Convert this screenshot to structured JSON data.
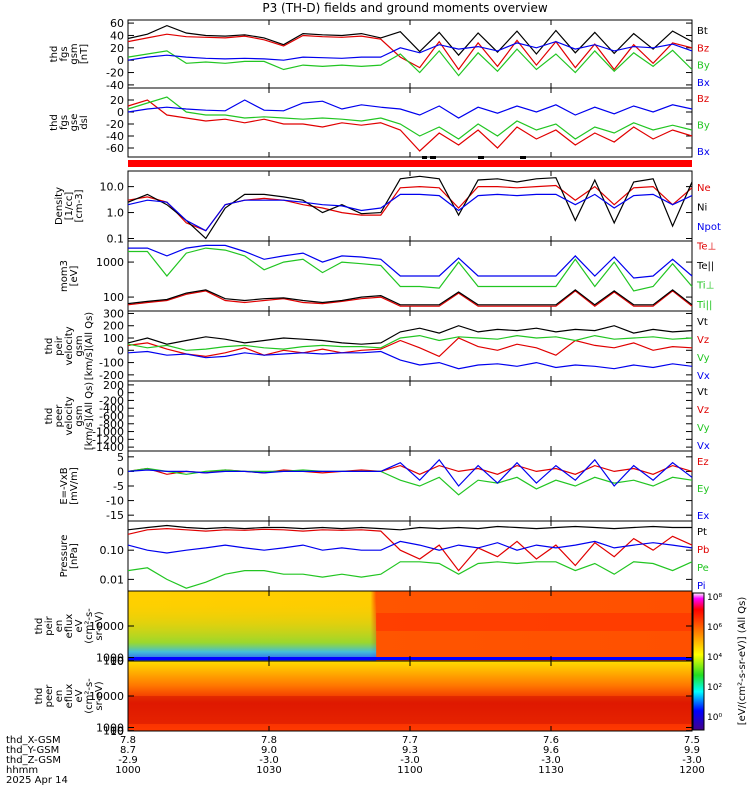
{
  "title": "P3 (TH-D) fields and ground moments overview",
  "colors": {
    "black": "#000000",
    "red": "#e00000",
    "blue": "#0000ee",
    "green": "#22c522",
    "tag_red": "#ff0000"
  },
  "time_axis": {
    "ticks": [
      "1000",
      "1030",
      "1100",
      "1130",
      "1200"
    ],
    "range_hhmm": [
      "1000",
      "1200"
    ]
  },
  "ephemeris": {
    "row_labels": [
      "thd_X-GSM",
      "thd_Y-GSM",
      "thd_Z-GSM",
      "hhmm",
      "2025 Apr 14"
    ],
    "columns": [
      {
        "x": "7.8",
        "y": "8.7",
        "z": "-2.9",
        "t": "1000"
      },
      {
        "x": "7.8",
        "y": "9.0",
        "z": "-3.0",
        "t": "1030"
      },
      {
        "x": "7.7",
        "y": "9.3",
        "z": "-3.0",
        "t": "1100"
      },
      {
        "x": "7.6",
        "y": "9.6",
        "z": "-3.0",
        "t": "1130"
      },
      {
        "x": "7.5",
        "y": "9.9",
        "z": "-3.0",
        "t": "1200"
      }
    ]
  },
  "colorbar": {
    "tick_labels": [
      "10^8",
      "10^6",
      "10^4",
      "10^2",
      "10^0"
    ],
    "label": "[eV/(cm^2-s-sr-eV)] (All Qs)"
  },
  "chart_data": [
    {
      "type": "line",
      "ylabel": [
        "thd",
        "fgs",
        "gsm",
        "[nT]"
      ],
      "ylim": [
        -45,
        65
      ],
      "y_ticks": [
        "60",
        "40",
        "20",
        "0",
        "-20",
        "-40"
      ],
      "legend": [
        "Bt",
        "Bz",
        "By",
        "Bx"
      ],
      "series": [
        {
          "name": "Bt",
          "color": "black",
          "values": [
            35,
            42,
            56,
            44,
            40,
            39,
            41,
            36,
            25,
            43,
            41,
            40,
            43,
            36,
            46,
            14,
            45,
            8,
            44,
            13,
            47,
            10,
            48,
            12,
            45,
            11,
            43,
            18,
            47,
            30
          ]
        },
        {
          "name": "Bz",
          "color": "red",
          "values": [
            30,
            36,
            42,
            38,
            37,
            36,
            39,
            33,
            23,
            40,
            38,
            37,
            39,
            34,
            5,
            -12,
            30,
            -15,
            28,
            -10,
            32,
            -8,
            30,
            -12,
            26,
            -15,
            25,
            -5,
            28,
            20
          ]
        },
        {
          "name": "By",
          "color": "green",
          "values": [
            5,
            10,
            15,
            -5,
            -3,
            -5,
            -2,
            -2,
            -15,
            -8,
            -10,
            -8,
            -10,
            -8,
            10,
            -20,
            15,
            -25,
            12,
            -18,
            18,
            -15,
            10,
            -20,
            15,
            -18,
            12,
            -10,
            16,
            -15
          ]
        },
        {
          "name": "Bx",
          "color": "blue",
          "values": [
            0,
            5,
            8,
            5,
            3,
            2,
            3,
            2,
            0,
            5,
            4,
            3,
            5,
            5,
            20,
            12,
            25,
            18,
            22,
            15,
            28,
            20,
            30,
            18,
            25,
            15,
            22,
            20,
            26,
            15
          ]
        }
      ]
    },
    {
      "type": "line",
      "ylabel": [
        "thd",
        "fgs",
        "gse",
        "dsl"
      ],
      "ylim": [
        -75,
        40
      ],
      "y_ticks": [
        "20",
        "0",
        "-20",
        "-40",
        "-60"
      ],
      "legend": [
        "Bz",
        "By",
        "Bx"
      ],
      "series": [
        {
          "name": "Bz",
          "color": "red",
          "values": [
            10,
            20,
            -5,
            -10,
            -15,
            -12,
            -18,
            -12,
            -20,
            -20,
            -25,
            -18,
            -22,
            -18,
            -30,
            -65,
            -35,
            -55,
            -30,
            -60,
            -25,
            -45,
            -30,
            -55,
            -35,
            -50,
            -25,
            -45,
            -30,
            -40
          ]
        },
        {
          "name": "By",
          "color": "green",
          "values": [
            5,
            15,
            25,
            0,
            -5,
            -5,
            -10,
            -8,
            -10,
            -12,
            -10,
            -12,
            -15,
            -10,
            -20,
            -40,
            -25,
            -45,
            -20,
            -40,
            -15,
            -30,
            -20,
            -45,
            -25,
            -35,
            -18,
            -30,
            -22,
            -30
          ]
        },
        {
          "name": "Bx",
          "color": "blue",
          "values": [
            0,
            5,
            8,
            5,
            3,
            2,
            20,
            3,
            2,
            15,
            18,
            5,
            12,
            8,
            5,
            -5,
            10,
            -10,
            8,
            -2,
            10,
            0,
            12,
            -5,
            8,
            -3,
            10,
            0,
            12,
            5
          ]
        }
      ]
    },
    {
      "type": "line",
      "log": true,
      "ylabel": [
        "Density",
        "[1/cc]",
        "[cm-3]"
      ],
      "ylim": [
        0.08,
        40
      ],
      "y_ticks": [
        "10.0",
        "1.0",
        "0.1"
      ],
      "legend": [
        "Ne",
        "Ni",
        "Npot",
        "Te⊥",
        "Te||",
        "Ti⊥",
        "Ti||"
      ],
      "series": [
        {
          "name": "Ne",
          "color": "red",
          "values": [
            3,
            4,
            2.5,
            0.4,
            0.2,
            2,
            3,
            3.5,
            3,
            2,
            1.5,
            1,
            0.8,
            0.8,
            9,
            10,
            9,
            1.5,
            10,
            10,
            9,
            10,
            11,
            3,
            10,
            2,
            9,
            10,
            2,
            9
          ]
        },
        {
          "name": "Ni",
          "color": "black",
          "values": [
            2.5,
            5,
            2,
            0.5,
            0.1,
            1.5,
            5,
            5,
            4,
            3,
            1,
            2,
            0.9,
            1,
            20,
            25,
            20,
            0.8,
            18,
            20,
            15,
            20,
            22,
            0.5,
            18,
            0.4,
            15,
            20,
            0.3,
            15
          ]
        },
        {
          "name": "Npot",
          "color": "blue",
          "values": [
            2,
            3,
            2.5,
            0.5,
            0.2,
            2,
            3,
            3,
            3,
            2.5,
            2,
            1.8,
            1.2,
            1.5,
            5,
            5,
            4.5,
            1.2,
            4.5,
            5,
            4.5,
            5,
            5,
            2,
            5,
            1.5,
            4.5,
            5,
            2,
            4.5
          ]
        }
      ]
    },
    {
      "type": "line",
      "log": true,
      "ylabel": [
        "mom3",
        "[eV]"
      ],
      "ylim": [
        40,
        4000
      ],
      "y_ticks": [
        "1000",
        "100"
      ],
      "legend": [],
      "series": [
        {
          "name": "Te⊥",
          "color": "red",
          "values": [
            60,
            70,
            80,
            120,
            150,
            80,
            70,
            80,
            90,
            70,
            65,
            75,
            90,
            100,
            55,
            55,
            55,
            130,
            55,
            55,
            55,
            55,
            55,
            150,
            55,
            140,
            55,
            55,
            150,
            55
          ]
        },
        {
          "name": "Te||",
          "color": "black",
          "values": [
            65,
            75,
            85,
            130,
            160,
            90,
            80,
            90,
            95,
            80,
            70,
            80,
            100,
            110,
            60,
            60,
            60,
            140,
            60,
            60,
            60,
            60,
            60,
            160,
            60,
            150,
            60,
            60,
            160,
            60
          ]
        },
        {
          "name": "Ti⊥",
          "color": "blue",
          "values": [
            2500,
            2500,
            1500,
            2500,
            3000,
            3000,
            2000,
            1200,
            1500,
            1800,
            1000,
            1500,
            1400,
            1200,
            400,
            400,
            400,
            1300,
            400,
            400,
            400,
            400,
            400,
            1500,
            400,
            1400,
            350,
            400,
            1200,
            400
          ]
        },
        {
          "name": "Ti||",
          "color": "green",
          "values": [
            2000,
            2000,
            400,
            1800,
            2500,
            2200,
            1500,
            600,
            1000,
            1200,
            500,
            1000,
            900,
            800,
            200,
            200,
            180,
            1000,
            200,
            200,
            200,
            200,
            200,
            1200,
            200,
            1000,
            150,
            200,
            900,
            200
          ]
        }
      ]
    },
    {
      "type": "line",
      "ylabel": [
        "thd",
        "peir",
        "velocity",
        "gsm",
        "[km/s](All Qs)"
      ],
      "ylim": [
        -250,
        320
      ],
      "y_ticks": [
        "300",
        "200",
        "100",
        "0",
        "-100",
        "-200"
      ],
      "legend": [
        "Vt",
        "Vz",
        "Vy",
        "Vx"
      ],
      "series": [
        {
          "name": "Vt",
          "color": "black",
          "values": [
            60,
            100,
            50,
            80,
            110,
            90,
            60,
            80,
            100,
            90,
            80,
            60,
            50,
            60,
            150,
            180,
            140,
            200,
            150,
            170,
            160,
            180,
            150,
            170,
            160,
            200,
            140,
            170,
            150,
            160
          ]
        },
        {
          "name": "Vz",
          "color": "red",
          "values": [
            40,
            60,
            10,
            -30,
            -50,
            -20,
            20,
            -40,
            0,
            -20,
            10,
            -20,
            0,
            10,
            80,
            20,
            -50,
            100,
            30,
            0,
            50,
            20,
            -40,
            80,
            40,
            20,
            60,
            0,
            30,
            20
          ]
        },
        {
          "name": "Vy",
          "color": "green",
          "values": [
            50,
            20,
            40,
            0,
            10,
            30,
            40,
            20,
            10,
            30,
            40,
            30,
            30,
            20,
            100,
            120,
            80,
            110,
            100,
            90,
            120,
            100,
            110,
            80,
            120,
            90,
            100,
            110,
            90,
            100
          ]
        },
        {
          "name": "Vx",
          "color": "blue",
          "values": [
            -20,
            -10,
            -40,
            -30,
            -60,
            -50,
            -20,
            -40,
            -30,
            -20,
            -30,
            -20,
            -20,
            -10,
            -80,
            -120,
            -100,
            -150,
            -120,
            -110,
            -130,
            -100,
            -140,
            -120,
            -130,
            -150,
            -120,
            -140,
            -110,
            -130
          ]
        }
      ]
    },
    {
      "type": "line",
      "ylabel": [
        "thd",
        "peer",
        "velocity",
        "gsm",
        "[km/s](All Qs)"
      ],
      "ylim": [
        -1500,
        300
      ],
      "y_ticks": [
        "200",
        "0",
        "-200",
        "-400",
        "-600",
        "-800",
        "-1000",
        "-1200",
        "-1400"
      ],
      "legend": [
        "Vt",
        "Vz",
        "Vy",
        "Vx"
      ],
      "series": []
    },
    {
      "type": "line",
      "ylabel": [
        "E=-VxB",
        "[mV/m]"
      ],
      "ylim": [
        -17,
        7
      ],
      "y_ticks": [
        "5",
        "0",
        "-5",
        "-10",
        "-15"
      ],
      "legend": [
        "Ez",
        "Ey",
        "Ex"
      ],
      "series": [
        {
          "name": "Ez",
          "color": "red",
          "values": [
            0,
            1,
            -1,
            0,
            -0.5,
            0.5,
            0,
            -0.5,
            0.5,
            0,
            -0.5,
            0,
            0.5,
            0,
            2,
            -1,
            2,
            0,
            1,
            -1,
            2,
            0,
            1,
            -1,
            2,
            0,
            1,
            -1,
            2,
            0
          ]
        },
        {
          "name": "Ey",
          "color": "green",
          "values": [
            0,
            1,
            0,
            -1,
            0,
            0.5,
            0,
            0,
            0,
            0.5,
            0,
            0,
            0,
            0,
            -3,
            -5,
            -2,
            -8,
            -3,
            -4,
            -2,
            -6,
            -3,
            -5,
            -2,
            -4,
            -3,
            -5,
            -2,
            -3
          ]
        },
        {
          "name": "Ex",
          "color": "blue",
          "values": [
            0,
            0.5,
            0,
            0,
            -0.5,
            0,
            0,
            -0.5,
            0,
            0,
            0,
            0,
            0,
            0,
            3,
            -3,
            4,
            -5,
            2,
            -4,
            3,
            -4,
            2,
            -3,
            4,
            -5,
            2,
            -3,
            3,
            -2
          ]
        }
      ]
    },
    {
      "type": "line",
      "log": true,
      "ylabel": [
        "Pressure",
        "[nPa]"
      ],
      "ylim": [
        0.004,
        1.0
      ],
      "y_ticks": [
        "0.10",
        "0.01"
      ],
      "legend": [
        "Pt",
        "Pb",
        "Pe",
        "Pi"
      ],
      "series": [
        {
          "name": "Pt",
          "color": "black",
          "values": [
            0.5,
            0.6,
            0.7,
            0.6,
            0.55,
            0.6,
            0.55,
            0.6,
            0.6,
            0.55,
            0.6,
            0.55,
            0.6,
            0.55,
            0.5,
            0.6,
            0.55,
            0.6,
            0.55,
            0.65,
            0.6,
            0.55,
            0.6,
            0.65,
            0.6,
            0.55,
            0.6,
            0.65,
            0.6,
            0.6
          ]
        },
        {
          "name": "Pb",
          "color": "red",
          "values": [
            0.35,
            0.5,
            0.55,
            0.5,
            0.45,
            0.5,
            0.48,
            0.52,
            0.5,
            0.45,
            0.5,
            0.48,
            0.5,
            0.45,
            0.1,
            0.05,
            0.15,
            0.02,
            0.12,
            0.06,
            0.2,
            0.05,
            0.15,
            0.03,
            0.18,
            0.06,
            0.25,
            0.1,
            0.3,
            0.15
          ]
        },
        {
          "name": "Pe",
          "color": "green",
          "values": [
            0.02,
            0.025,
            0.01,
            0.005,
            0.008,
            0.015,
            0.02,
            0.02,
            0.015,
            0.015,
            0.012,
            0.015,
            0.012,
            0.015,
            0.04,
            0.04,
            0.035,
            0.015,
            0.035,
            0.04,
            0.035,
            0.04,
            0.04,
            0.02,
            0.035,
            0.015,
            0.04,
            0.035,
            0.02,
            0.04
          ]
        },
        {
          "name": "Pi",
          "color": "blue",
          "values": [
            0.15,
            0.1,
            0.08,
            0.1,
            0.12,
            0.15,
            0.12,
            0.1,
            0.12,
            0.15,
            0.1,
            0.12,
            0.1,
            0.1,
            0.2,
            0.15,
            0.1,
            0.15,
            0.12,
            0.18,
            0.1,
            0.15,
            0.12,
            0.15,
            0.2,
            0.12,
            0.15,
            0.18,
            0.15,
            0.12
          ]
        }
      ]
    },
    {
      "type": "heatmap",
      "ylabel": [
        "thd",
        "peir",
        "en",
        "eflux",
        "eV",
        "(cm^2-s-",
        "sr-eV)"
      ],
      "ylim": [
        5,
        20000
      ],
      "y_ticks": [
        "10000",
        "1000",
        "100",
        "10"
      ]
    },
    {
      "type": "heatmap",
      "ylabel": [
        "thd",
        "peer",
        "en",
        "eflux",
        "eV",
        "(cm^2-s-",
        "sr-eV)"
      ],
      "ylim": [
        5,
        20000
      ],
      "y_ticks": [
        "10000",
        "1000",
        "100",
        "10"
      ]
    }
  ]
}
